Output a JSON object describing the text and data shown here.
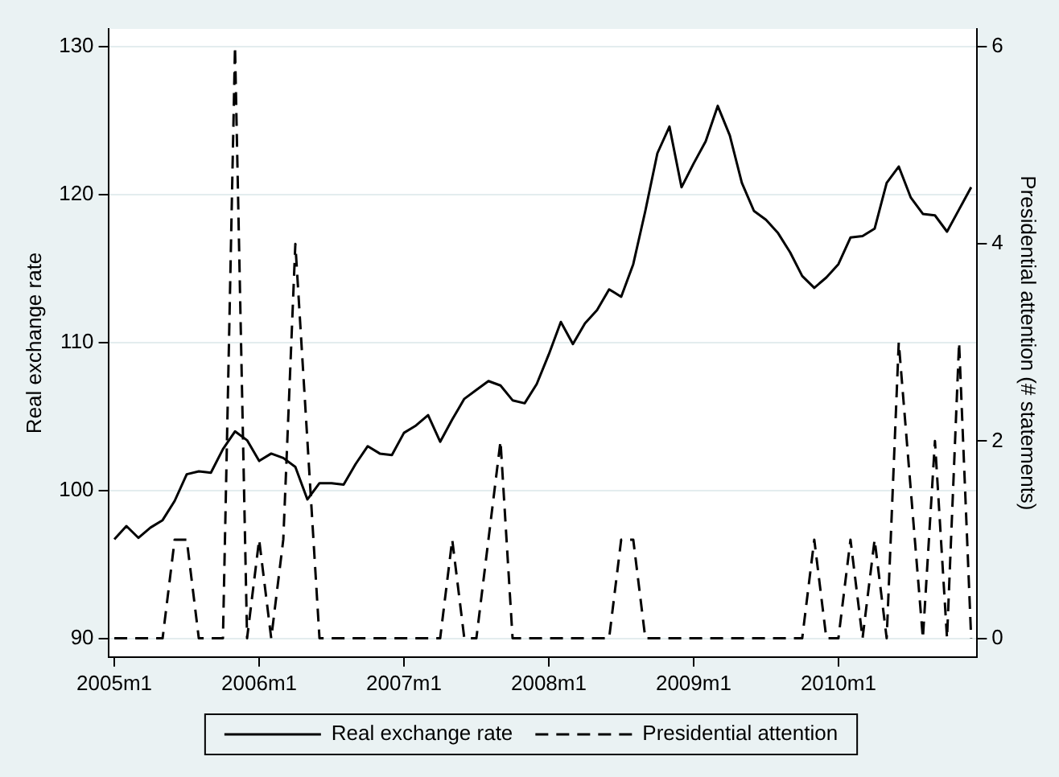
{
  "chart_data": {
    "type": "line",
    "ylabel": "Real exchange rate",
    "y2label": "Presidential attention (# statements)",
    "categories": [
      "2005m1",
      null,
      null,
      null,
      null,
      null,
      null,
      null,
      null,
      null,
      null,
      null,
      "2006m1",
      null,
      null,
      null,
      null,
      null,
      null,
      null,
      null,
      null,
      null,
      null,
      "2007m1",
      null,
      null,
      null,
      null,
      null,
      null,
      null,
      null,
      null,
      null,
      null,
      "2008m1",
      null,
      null,
      null,
      null,
      null,
      null,
      null,
      null,
      null,
      null,
      null,
      "2009m1",
      null,
      null,
      null,
      null,
      null,
      null,
      null,
      null,
      null,
      null,
      null,
      "2010m1",
      null,
      null,
      null,
      null,
      null,
      null,
      null,
      null,
      null,
      null,
      null
    ],
    "ylim": [
      88.75,
      131.2
    ],
    "yticks": [
      90,
      100,
      110,
      120,
      130
    ],
    "y2lim": [
      -0.19,
      6.18
    ],
    "y2ticks": [
      0,
      2,
      4,
      6
    ],
    "grid": "y",
    "legend": "bottom",
    "marker": "none",
    "series": [
      {
        "name": "Real exchange rate",
        "color": "#000000",
        "line_style": "solid",
        "values": [
          96.7,
          97.6,
          96.8,
          97.5,
          98.0,
          99.3,
          101.1,
          101.3,
          101.2,
          102.8,
          104.0,
          103.4,
          102.0,
          102.5,
          102.2,
          101.6,
          99.4,
          100.5,
          100.5,
          100.4,
          101.8,
          103.0,
          102.5,
          102.4,
          103.9,
          104.4,
          105.1,
          103.3,
          104.8,
          106.2,
          106.8,
          107.4,
          107.1,
          106.1,
          105.9,
          107.2,
          109.2,
          111.4,
          109.9,
          111.3,
          112.2,
          113.6,
          113.1,
          115.3,
          118.9,
          122.8,
          124.6,
          120.5,
          122.1,
          123.6,
          126.0,
          124.0,
          120.8,
          118.9,
          118.3,
          117.4,
          116.1,
          114.5,
          113.7,
          114.4,
          115.3,
          117.1,
          117.2,
          117.7,
          120.8,
          121.9,
          119.8,
          118.7,
          118.6,
          117.5,
          119.0,
          120.5
        ]
      },
      {
        "name": "Presidential attention",
        "color": "#000000",
        "line_style": "dashed",
        "axis": "y2",
        "values": [
          0,
          0,
          0,
          0,
          0,
          1,
          1,
          0,
          0,
          0,
          6,
          0,
          1,
          0,
          1,
          4,
          2,
          0,
          0,
          0,
          0,
          0,
          0,
          0,
          0,
          0,
          0,
          0,
          1,
          0,
          0,
          1,
          2,
          0,
          0,
          0,
          0,
          0,
          0,
          0,
          0,
          0,
          1,
          1,
          0,
          0,
          0,
          0,
          0,
          0,
          0,
          0,
          0,
          0,
          0,
          0,
          0,
          0,
          1,
          0,
          0,
          1,
          0,
          1,
          0,
          3,
          1.5,
          0,
          2,
          0,
          3,
          0
        ]
      }
    ]
  }
}
